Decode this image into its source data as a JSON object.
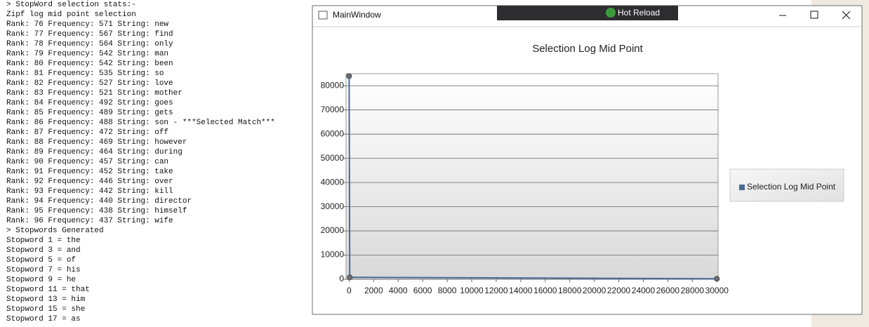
{
  "console": {
    "lines": [
      "> StopWord selection stats:-",
      "Zipf log mid point selection",
      "Rank: 76 Frequency: 571 String: new",
      "Rank: 77 Frequency: 567 String: find",
      "Rank: 78 Frequency: 564 String: only",
      "Rank: 79 Frequency: 542 String: man",
      "Rank: 80 Frequency: 542 String: been",
      "Rank: 81 Frequency: 535 String: so",
      "Rank: 82 Frequency: 527 String: love",
      "Rank: 83 Frequency: 521 String: mother",
      "Rank: 84 Frequency: 492 String: goes",
      "Rank: 85 Frequency: 489 String: gets",
      "Rank: 86 Frequency: 488 String: son - ***Selected Match***",
      "Rank: 87 Frequency: 472 String: off",
      "Rank: 88 Frequency: 469 String: however",
      "Rank: 89 Frequency: 464 String: during",
      "Rank: 90 Frequency: 457 String: can",
      "Rank: 91 Frequency: 452 String: take",
      "Rank: 92 Frequency: 446 String: over",
      "Rank: 93 Frequency: 442 String: kill",
      "Rank: 94 Frequency: 440 String: director",
      "Rank: 95 Frequency: 438 String: himself",
      "Rank: 96 Frequency: 437 String: wife",
      "> Stopwords Generated",
      "Stopword 1 = the",
      "Stopword 3 = and",
      "Stopword 5 = of",
      "Stopword 7 = his",
      "Stopword 9 = he",
      "Stopword 11 = that",
      "Stopword 13 = him",
      "Stopword 15 = she",
      "Stopword 17 = as"
    ]
  },
  "window": {
    "title": "MainWindow",
    "toolbar_button": "Hot Reload"
  },
  "chart_data": {
    "type": "line",
    "title": "Selection Log Mid Point",
    "x": [
      0,
      50,
      30000
    ],
    "series": [
      {
        "name": "Selection Log Mid Point",
        "color": "#4a6a96",
        "values": [
          84000,
          800,
          200
        ]
      }
    ],
    "xlim": [
      -250,
      30100
    ],
    "xticks": [
      0,
      2000,
      4000,
      6000,
      8000,
      10000,
      12000,
      14000,
      16000,
      18000,
      20000,
      22000,
      24000,
      26000,
      28000,
      30000
    ],
    "ylim": [
      0,
      85000
    ],
    "yticks": [
      0,
      10000,
      20000,
      30000,
      40000,
      50000,
      60000,
      70000,
      80000
    ],
    "grid": true,
    "legend": "right"
  }
}
